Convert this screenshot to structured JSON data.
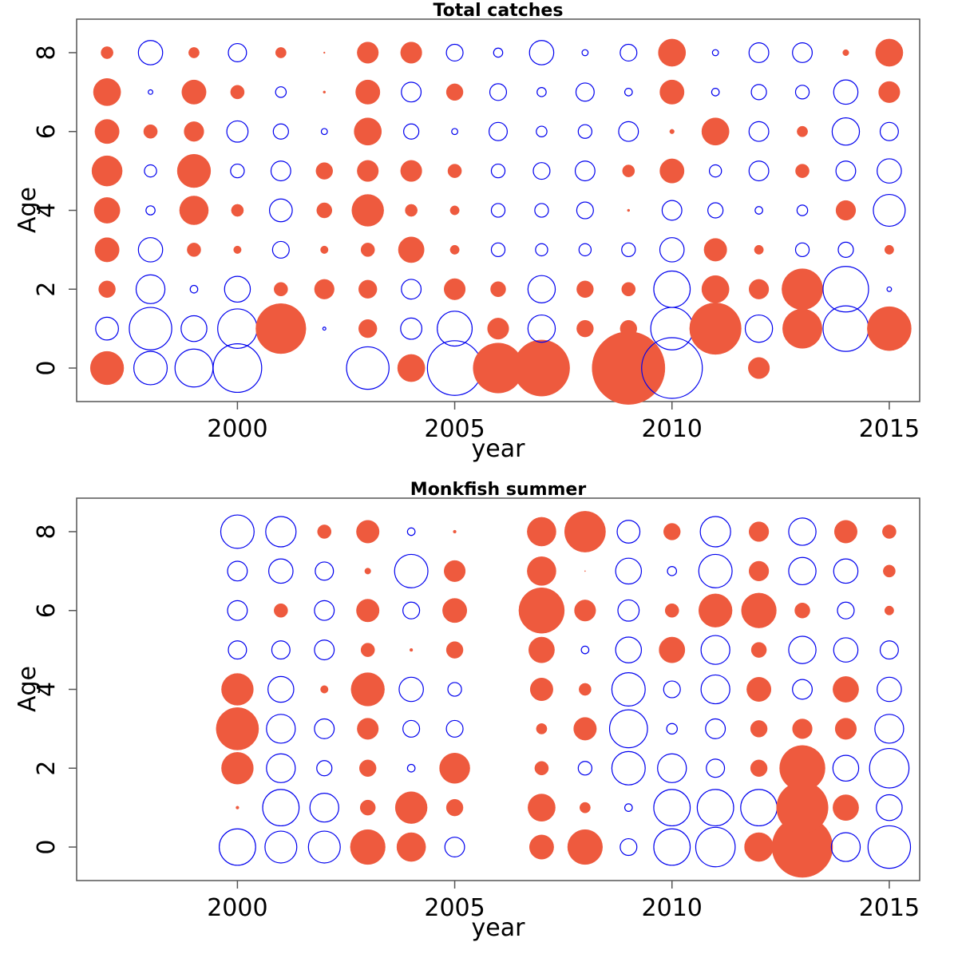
{
  "colors": {
    "positive": "#EE5A3E",
    "negative": "#0000EE",
    "frame": "#555555",
    "text": "#000000"
  },
  "chart_data": [
    {
      "type": "scatter",
      "subtype": "bubble",
      "title": "Total catches",
      "xlabel": "year",
      "ylabel": "Age",
      "xlim": [
        1996.3,
        2015.7
      ],
      "ylim": [
        -0.85,
        8.85
      ],
      "xticks": [
        2000,
        2005,
        2010,
        2015
      ],
      "yticks": [
        0,
        2,
        4,
        6,
        8
      ],
      "y_tick_labels": [
        "0",
        "2",
        "4",
        "6",
        "8"
      ],
      "ages": [
        0,
        1,
        2,
        3,
        4,
        5,
        6,
        7,
        8
      ],
      "years": [
        1997,
        1998,
        1999,
        2000,
        2001,
        2002,
        2003,
        2004,
        2005,
        2006,
        2007,
        2008,
        2009,
        2010,
        2011,
        2012,
        2013,
        2014,
        2015
      ],
      "residuals": [
        [
          1.1,
          -1.1,
          -1.25,
          -1.6,
          0,
          0,
          -1.4,
          0.9,
          -1.8,
          1.65,
          1.85,
          0,
          2.4,
          -2.0,
          0,
          0.7,
          0,
          0,
          0
        ],
        [
          -0.75,
          -1.4,
          -0.85,
          -1.3,
          1.65,
          -0.1,
          0.6,
          -0.7,
          -1.15,
          0.7,
          -0.9,
          0.55,
          0.55,
          -1.4,
          1.7,
          -0.9,
          1.3,
          -1.5,
          1.45
        ],
        [
          0.55,
          -0.95,
          -0.25,
          -0.85,
          0.45,
          0.65,
          0.6,
          -0.65,
          0.7,
          0.5,
          -0.9,
          0.55,
          0.45,
          -1.2,
          0.9,
          0.65,
          1.35,
          -1.5,
          -0.15
        ],
        [
          0.8,
          -0.8,
          0.45,
          0.25,
          -0.55,
          0.25,
          0.45,
          0.85,
          0.3,
          -0.45,
          -0.4,
          -0.4,
          -0.45,
          -0.8,
          0.75,
          0.3,
          -0.45,
          -0.5,
          0.3
        ],
        [
          0.85,
          -0.3,
          0.95,
          0.4,
          -0.75,
          0.5,
          1.05,
          0.4,
          0.3,
          -0.45,
          -0.45,
          -0.55,
          0.08,
          -0.65,
          -0.5,
          -0.25,
          -0.35,
          0.65,
          -1.05
        ],
        [
          1.0,
          -0.4,
          1.1,
          -0.45,
          -0.65,
          0.55,
          0.7,
          0.7,
          0.45,
          -0.45,
          -0.55,
          -0.65,
          0.4,
          0.8,
          -0.4,
          -0.65,
          0.45,
          -0.65,
          -0.8
        ],
        [
          0.8,
          0.45,
          0.65,
          -0.7,
          -0.5,
          -0.2,
          0.9,
          -0.5,
          -0.2,
          -0.6,
          -0.35,
          -0.45,
          -0.65,
          0.15,
          0.9,
          -0.65,
          0.35,
          -0.9,
          -0.6
        ],
        [
          0.9,
          -0.15,
          0.8,
          0.45,
          -0.35,
          0.08,
          0.8,
          -0.65,
          0.55,
          -0.55,
          -0.3,
          -0.6,
          -0.25,
          0.8,
          -0.25,
          -0.5,
          -0.45,
          -0.8,
          0.7
        ],
        [
          0.4,
          -0.8,
          0.35,
          -0.6,
          0.35,
          0.05,
          0.7,
          0.7,
          -0.55,
          -0.3,
          -0.8,
          -0.2,
          -0.55,
          0.9,
          -0.2,
          -0.65,
          -0.65,
          0.2,
          0.9
        ]
      ]
    },
    {
      "type": "scatter",
      "subtype": "bubble",
      "title": "Monkfish summer",
      "xlabel": "year",
      "ylabel": "Age",
      "xlim": [
        1996.3,
        2015.7
      ],
      "ylim": [
        -0.85,
        8.85
      ],
      "xticks": [
        2000,
        2005,
        2010,
        2015
      ],
      "yticks": [
        0,
        2,
        4,
        6,
        8
      ],
      "y_tick_labels": [
        "0",
        "2",
        "4",
        "6",
        "8"
      ],
      "ages": [
        0,
        1,
        2,
        3,
        4,
        5,
        6,
        7,
        8
      ],
      "years": [
        2000,
        2001,
        2002,
        2003,
        2004,
        2005,
        2007,
        2008,
        2009,
        2010,
        2011,
        2012,
        2013,
        2014,
        2015
      ],
      "residuals": [
        [
          -1.2,
          -1.05,
          -1.05,
          1.15,
          0.95,
          -0.65,
          0.8,
          1.15,
          -0.55,
          -1.2,
          -1.3,
          0.95,
          2.0,
          -0.95,
          -1.4
        ],
        [
          0.1,
          -1.2,
          -0.95,
          0.5,
          1.05,
          0.55,
          0.9,
          0.35,
          -0.25,
          -1.2,
          -1.2,
          -1.2,
          1.7,
          0.85,
          -0.85
        ],
        [
          1.05,
          -0.95,
          -0.5,
          0.55,
          -0.25,
          1.0,
          0.45,
          -0.45,
          -1.1,
          -0.95,
          -0.6,
          0.55,
          1.5,
          -0.85,
          -1.3
        ],
        [
          1.4,
          -0.95,
          -0.65,
          0.7,
          -0.55,
          -0.55,
          0.35,
          0.75,
          -1.25,
          -0.35,
          -0.65,
          0.55,
          0.65,
          0.7,
          -0.95
        ],
        [
          1.05,
          -0.85,
          0.25,
          1.1,
          -0.8,
          -0.45,
          0.75,
          0.4,
          -1.1,
          -0.55,
          -0.95,
          0.8,
          -0.65,
          0.85,
          -0.8
        ],
        [
          -0.6,
          -0.6,
          -0.65,
          0.45,
          0.1,
          0.55,
          0.85,
          -0.25,
          -0.85,
          0.85,
          -0.95,
          0.5,
          -0.9,
          -0.8,
          -0.6
        ],
        [
          -0.65,
          0.45,
          -0.65,
          0.75,
          -0.55,
          0.8,
          1.5,
          0.7,
          -0.7,
          0.45,
          1.1,
          1.15,
          0.5,
          -0.55,
          0.3
        ],
        [
          -0.65,
          -0.8,
          -0.6,
          0.2,
          -1.1,
          0.7,
          0.95,
          0.02,
          -0.85,
          -0.3,
          -1.1,
          0.65,
          -0.9,
          -0.8,
          0.4
        ],
        [
          -1.1,
          -1.0,
          0.45,
          0.75,
          -0.25,
          0.1,
          0.95,
          1.35,
          -0.75,
          0.55,
          -1.0,
          0.65,
          -0.9,
          0.75,
          0.45
        ]
      ]
    }
  ]
}
